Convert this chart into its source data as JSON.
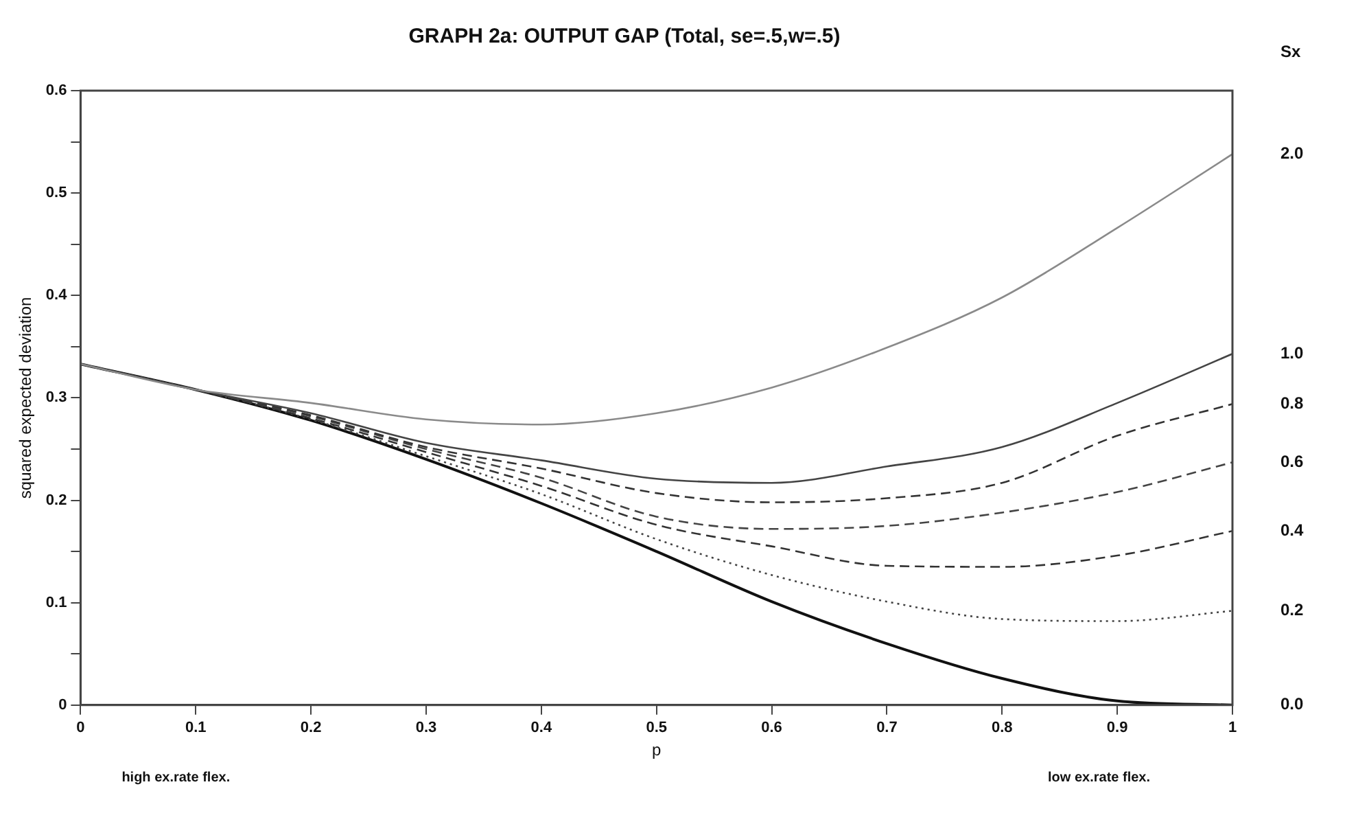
{
  "chart_data": {
    "type": "line",
    "title": "GRAPH 2a: OUTPUT GAP (Total, se=.5,w=.5)",
    "xlabel": "p",
    "ylabel": "squared expected deviation",
    "legend_title": "Sx",
    "x": [
      0,
      0.1,
      0.2,
      0.3,
      0.4,
      0.5,
      0.6,
      0.7,
      0.8,
      0.9,
      1
    ],
    "xlim": [
      0,
      1
    ],
    "xticks": [
      0,
      0.1,
      0.2,
      0.3,
      0.4,
      0.5,
      0.6,
      0.7,
      0.8,
      0.9,
      1
    ],
    "ylim": [
      0,
      0.6
    ],
    "yticks": [
      0,
      {
        "value": 0.05,
        "label": null
      },
      0.1,
      {
        "value": 0.15,
        "label": null
      },
      0.2,
      {
        "value": 0.25,
        "label": null
      },
      0.3,
      {
        "value": 0.35,
        "label": null
      },
      0.4,
      {
        "value": 0.45,
        "label": null
      },
      0.5,
      {
        "value": 0.55,
        "label": null
      },
      0.6
    ],
    "grid": false,
    "legend": false,
    "marker": "none",
    "series": [
      {
        "name": "2.0",
        "color": "#8a8a8a",
        "line_style": "solid",
        "values": [
          0.333,
          0.308,
          0.295,
          0.279,
          0.274,
          0.285,
          0.31,
          0.349,
          0.398,
          0.466,
          0.538
        ]
      },
      {
        "name": "1.0",
        "color": "#444444",
        "line_style": "solid",
        "values": [
          0.333,
          0.308,
          0.285,
          0.256,
          0.239,
          0.221,
          0.217,
          0.233,
          0.252,
          0.295,
          0.343
        ]
      },
      {
        "name": "0.8",
        "color": "#333333",
        "line_style": "dashed",
        "values": [
          0.333,
          0.308,
          0.283,
          0.252,
          0.231,
          0.207,
          0.198,
          0.202,
          0.217,
          0.263,
          0.294
        ]
      },
      {
        "name": "0.6",
        "color": "#444444",
        "line_style": "dashed",
        "values": [
          0.333,
          0.308,
          0.282,
          0.25,
          0.222,
          0.184,
          0.172,
          0.175,
          0.188,
          0.208,
          0.237
        ]
      },
      {
        "name": "0.4",
        "color": "#333333",
        "line_style": "dashed",
        "values": [
          0.333,
          0.308,
          0.28,
          0.247,
          0.214,
          0.176,
          0.155,
          0.136,
          0.135,
          0.146,
          0.17
        ]
      },
      {
        "name": "0.2",
        "color": "#444444",
        "line_style": "dotted",
        "values": [
          0.333,
          0.308,
          0.279,
          0.243,
          0.206,
          0.162,
          0.127,
          0.101,
          0.084,
          0.082,
          0.092
        ]
      },
      {
        "name": "0.0",
        "color": "#111111",
        "line_style": "solid",
        "values": [
          0.333,
          0.308,
          0.278,
          0.24,
          0.197,
          0.15,
          0.101,
          0.06,
          0.026,
          0.004,
          0
        ]
      }
    ],
    "annotations": [
      "high ex.rate flex.",
      "low ex.rate flex."
    ]
  }
}
